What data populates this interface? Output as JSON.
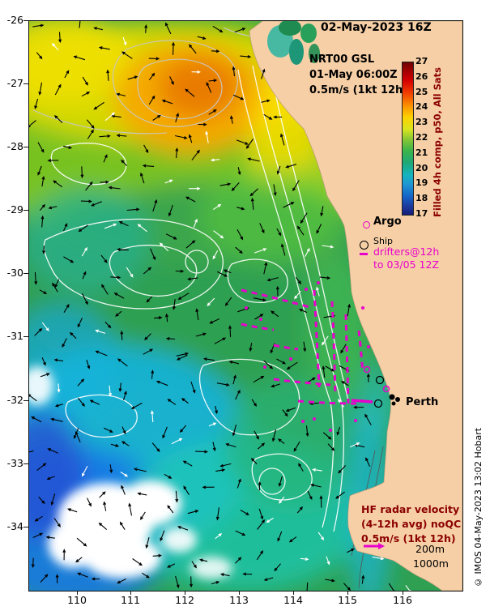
{
  "title": "02-May-2023 16Z",
  "annotations": {
    "product": "NRT00 GSL",
    "valid_time": "01-May 06:00Z",
    "vector_scale": "0.5m/s (1kt 12h)"
  },
  "colorbar": {
    "label": "Filled 4h comp, p50, All Sats",
    "ticks": [
      "27",
      "26",
      "25",
      "24",
      "23",
      "22",
      "21",
      "20",
      "19",
      "18",
      "17"
    ],
    "colors": [
      "#6e0005",
      "#d40000",
      "#fa8c00",
      "#fcd200",
      "#8cc832",
      "#3cb44b",
      "#1ea878",
      "#14b4be",
      "#1464c8",
      "#141e78"
    ]
  },
  "legend": {
    "argo_label": "Argo",
    "ship_label": "Ship",
    "drifters_line1": "drifters@12h",
    "drifters_line2": "to 03/05 12Z"
  },
  "map_labels": {
    "city": "Perth"
  },
  "hf_radar": {
    "line1": "HF radar velocity",
    "line2": "(4-12h avg) noQC",
    "line3": "0.5m/s (1kt 12h)"
  },
  "isobaths": {
    "d200": "200m",
    "d1000": "1000m"
  },
  "copyright": "© IMOS 04-May-2023 13:02 Hobart",
  "axes": {
    "x_ticks": [
      "110",
      "111",
      "112",
      "113",
      "114",
      "115",
      "116"
    ],
    "y_ticks": [
      "-26",
      "-27",
      "-28",
      "-29",
      "-30",
      "-31",
      "-32",
      "-33",
      "-34"
    ]
  },
  "colors": {
    "magenta": "#e800cc",
    "dark_red": "#8b0000",
    "land": "#f6cfa6"
  }
}
